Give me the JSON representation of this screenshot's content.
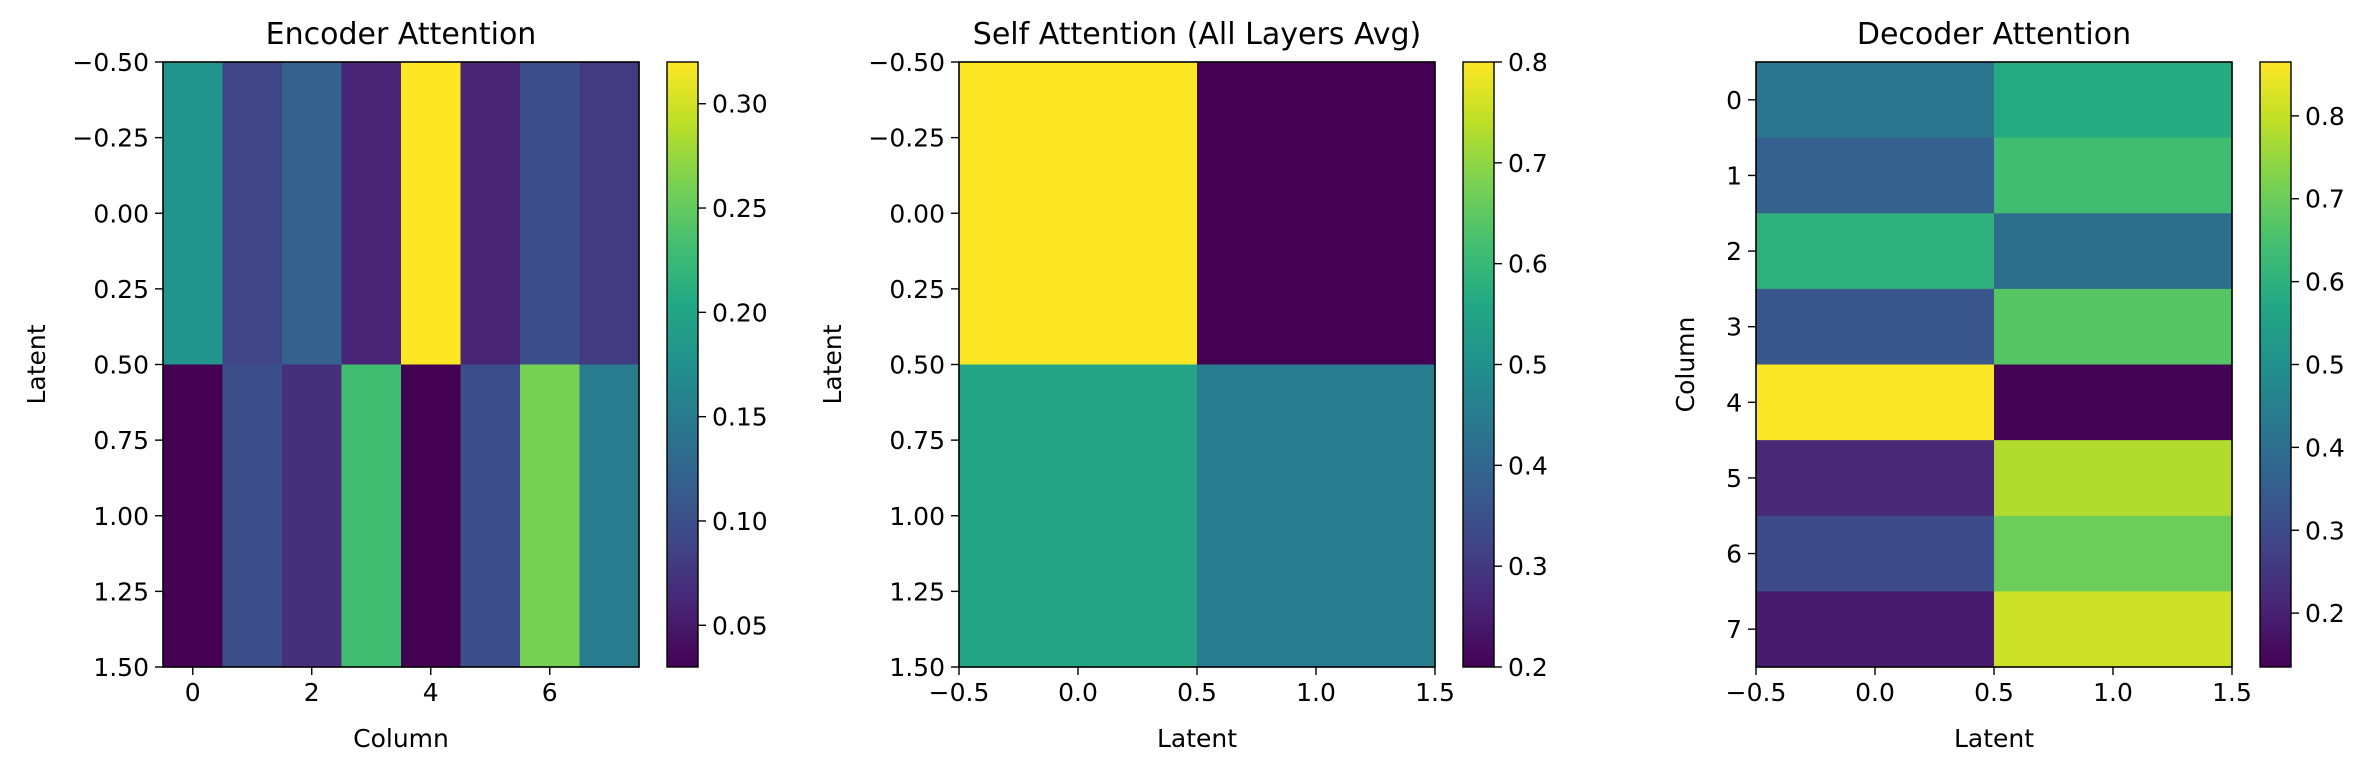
{
  "chart_data": [
    {
      "type": "heatmap",
      "title": "Encoder Attention",
      "xlabel": "Column",
      "ylabel": "Latent",
      "xlim": [
        -0.5,
        7.5
      ],
      "ylim": [
        1.5,
        -0.5
      ],
      "xticks": [
        0,
        2,
        4,
        6
      ],
      "xtick_labels": [
        "0",
        "2",
        "4",
        "6"
      ],
      "yticks": [
        -0.5,
        -0.25,
        0.0,
        0.25,
        0.5,
        0.75,
        1.0,
        1.25,
        1.5
      ],
      "ytick_labels": [
        "−0.50",
        "−0.25",
        "0.00",
        "0.25",
        "0.50",
        "0.75",
        "1.00",
        "1.25",
        "1.50"
      ],
      "values": [
        [
          0.18,
          0.09,
          0.12,
          0.06,
          0.32,
          0.06,
          0.1,
          0.08
        ],
        [
          0.03,
          0.1,
          0.07,
          0.23,
          0.03,
          0.1,
          0.26,
          0.15
        ]
      ],
      "colorbar": {
        "min": 0.03,
        "max": 0.32,
        "ticks": [
          0.05,
          0.1,
          0.15,
          0.2,
          0.25,
          0.3
        ],
        "tick_labels": [
          "0.05",
          "0.10",
          "0.15",
          "0.20",
          "0.25",
          "0.30"
        ]
      }
    },
    {
      "type": "heatmap",
      "title": "Self Attention (All Layers Avg)",
      "xlabel": "Latent",
      "ylabel": "Latent",
      "xlim": [
        -0.5,
        1.5
      ],
      "ylim": [
        1.5,
        -0.5
      ],
      "xticks": [
        -0.5,
        0.0,
        0.5,
        1.0,
        1.5
      ],
      "xtick_labels": [
        "−0.5",
        "0.0",
        "0.5",
        "1.0",
        "1.5"
      ],
      "yticks": [
        -0.5,
        -0.25,
        0.0,
        0.25,
        0.5,
        0.75,
        1.0,
        1.25,
        1.5
      ],
      "ytick_labels": [
        "−0.50",
        "−0.25",
        "0.00",
        "0.25",
        "0.50",
        "0.75",
        "1.00",
        "1.25",
        "1.50"
      ],
      "values": [
        [
          0.8,
          0.2
        ],
        [
          0.55,
          0.45
        ]
      ],
      "colorbar": {
        "min": 0.2,
        "max": 0.8,
        "ticks": [
          0.2,
          0.3,
          0.4,
          0.5,
          0.6,
          0.7,
          0.8
        ],
        "tick_labels": [
          "0.2",
          "0.3",
          "0.4",
          "0.5",
          "0.6",
          "0.7",
          "0.8"
        ]
      }
    },
    {
      "type": "heatmap",
      "title": "Decoder Attention",
      "xlabel": "Latent",
      "ylabel": "Column",
      "xlim": [
        -0.5,
        1.5
      ],
      "ylim": [
        7.5,
        -0.5
      ],
      "xticks": [
        -0.5,
        0.0,
        0.5,
        1.0,
        1.5
      ],
      "xtick_labels": [
        "−0.5",
        "0.0",
        "0.5",
        "1.0",
        "1.5"
      ],
      "yticks": [
        0,
        1,
        2,
        3,
        4,
        5,
        6,
        7
      ],
      "ytick_labels": [
        "0",
        "1",
        "2",
        "3",
        "4",
        "5",
        "6",
        "7"
      ],
      "values": [
        [
          0.42,
          0.58
        ],
        [
          0.36,
          0.64
        ],
        [
          0.6,
          0.4
        ],
        [
          0.33,
          0.67
        ],
        [
          0.86,
          0.14
        ],
        [
          0.22,
          0.78
        ],
        [
          0.3,
          0.7
        ],
        [
          0.19,
          0.81
        ]
      ],
      "colorbar": {
        "min": 0.135,
        "max": 0.865,
        "ticks": [
          0.2,
          0.3,
          0.4,
          0.5,
          0.6,
          0.7,
          0.8
        ],
        "tick_labels": [
          "0.2",
          "0.3",
          "0.4",
          "0.5",
          "0.6",
          "0.7",
          "0.8"
        ]
      }
    }
  ]
}
